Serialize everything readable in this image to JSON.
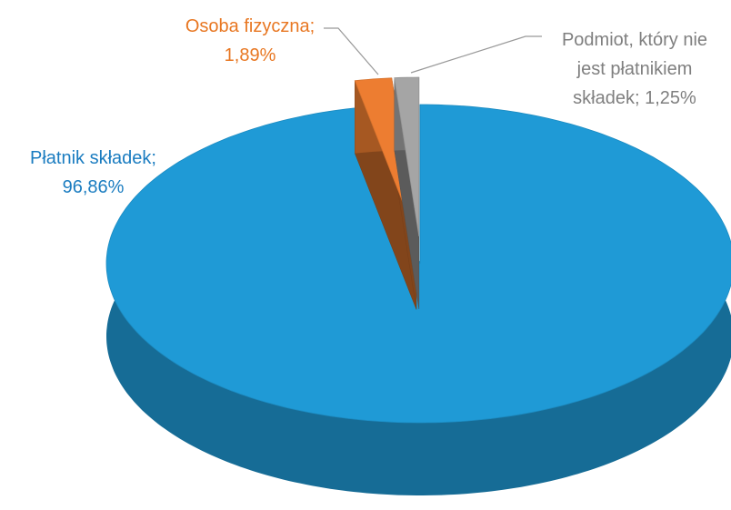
{
  "chart_data": {
    "type": "pie",
    "three_d": true,
    "categories": [
      "Płatnik składek;",
      "Osoba fizyczna;",
      "Podmiot, który nie jest płatnikiem składek;"
    ],
    "values": [
      96.86,
      1.89,
      1.25
    ],
    "value_labels": [
      "96,86%",
      "1,89%",
      "1,25%"
    ],
    "colors": [
      "#1f9ad6",
      "#ed7d31",
      "#a5a5a5"
    ],
    "label_colors": [
      "#1a7cc0",
      "#e87722",
      "#7f7f7f"
    ]
  }
}
